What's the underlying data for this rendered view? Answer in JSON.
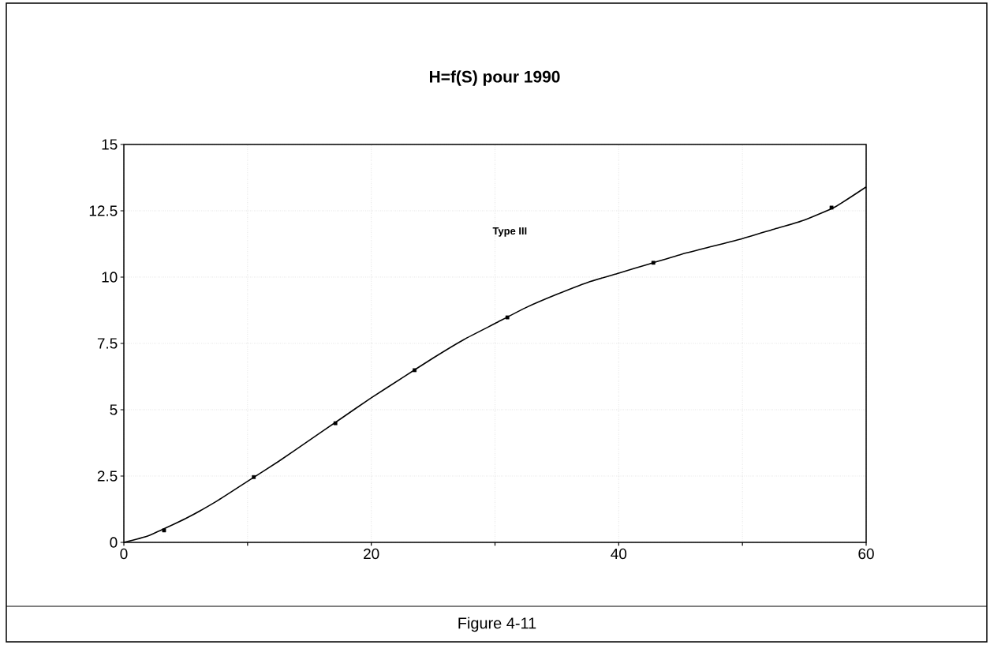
{
  "chart_data": {
    "type": "line",
    "title": "H=f(S) pour 1990",
    "annotations": [
      "Type III",
      "Figure 4-11"
    ],
    "xlim": [
      0,
      60
    ],
    "ylim": [
      0,
      15
    ],
    "xticks": [
      0,
      {
        "value": 10,
        "label": null
      },
      20,
      {
        "value": 30,
        "label": null
      },
      40,
      {
        "value": 50,
        "label": null
      },
      60
    ],
    "yticks": [
      0,
      2.5,
      5,
      7.5,
      10,
      12.5,
      15
    ],
    "grid": true,
    "series": [
      {
        "color": "#000000",
        "marker": "none",
        "x": [
          0,
          2,
          5,
          7.5,
          10,
          12.5,
          15,
          17.5,
          20,
          22.5,
          25,
          27.5,
          30,
          32.5,
          35,
          37.5,
          40,
          42.5,
          45,
          47.5,
          50,
          52.5,
          55,
          57.5,
          60
        ],
        "values": [
          0,
          0.25,
          0.9,
          1.55,
          2.3,
          3.05,
          3.85,
          4.65,
          5.45,
          6.2,
          6.95,
          7.65,
          8.25,
          8.85,
          9.35,
          9.8,
          10.15,
          10.5,
          10.85,
          11.15,
          11.45,
          11.8,
          12.15,
          12.65,
          13.4
        ]
      },
      {
        "type": "scatter",
        "color": "#000000",
        "marker": "square",
        "x": [
          3.25,
          10.5,
          17.1,
          23.5,
          31.0,
          42.8,
          57.2
        ],
        "values": [
          0.45,
          2.46,
          4.49,
          6.49,
          8.48,
          10.54,
          12.62
        ]
      }
    ]
  }
}
